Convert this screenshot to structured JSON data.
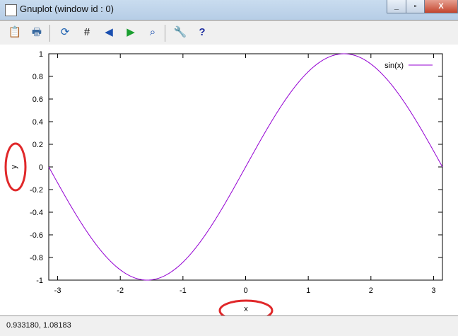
{
  "window": {
    "title": "Gnuplot (window id : 0)",
    "minimize_icon": "minimize-icon",
    "maximize_icon": "maximize-icon",
    "close_icon": "close-icon"
  },
  "toolbar": {
    "items": [
      {
        "name": "copy-clipboard",
        "icon": "clipboard-icon",
        "glyph": "📋"
      },
      {
        "name": "print",
        "icon": "print-icon",
        "glyph": "🖶"
      },
      {
        "name": "replot",
        "icon": "refresh-icon",
        "glyph": "⟳"
      },
      {
        "name": "grid",
        "icon": "grid-icon",
        "glyph": "#"
      },
      {
        "name": "zoom-prev",
        "icon": "zoom-previous-icon",
        "glyph": "◀"
      },
      {
        "name": "zoom-next",
        "icon": "zoom-next-icon",
        "glyph": "▶"
      },
      {
        "name": "autoscale",
        "icon": "autoscale-icon",
        "glyph": "⌕"
      },
      {
        "name": "options",
        "icon": "wrench-icon",
        "glyph": "🔧"
      },
      {
        "name": "help",
        "icon": "help-icon",
        "glyph": "?"
      }
    ]
  },
  "status": {
    "coords": "0.933180,  1.08183"
  },
  "chart_data": {
    "type": "line",
    "function": "sin(x)",
    "series": [
      {
        "name": "sin(x)",
        "color": "#9400d3"
      }
    ],
    "xlabel": "x",
    "ylabel": "y",
    "xlim": [
      -3.14159,
      3.14159
    ],
    "ylim": [
      -1,
      1
    ],
    "xticks": [
      -3,
      -2,
      -1,
      0,
      1,
      2,
      3
    ],
    "yticks": [
      -1,
      -0.8,
      -0.6,
      -0.4,
      -0.2,
      0,
      0.2,
      0.4,
      0.6,
      0.8,
      1
    ],
    "ytick_labels": [
      "-1",
      "-0.8",
      "-0.6",
      "-0.4",
      "-0.2",
      "0",
      "0.2",
      "0.4",
      "0.6",
      "0.8",
      "1"
    ],
    "xtick_labels": [
      "-3",
      "-2",
      "-1",
      "0",
      "1",
      "2",
      "3"
    ],
    "grid": false,
    "legend_position": "top-right",
    "annotation_color": "#e0282a"
  }
}
